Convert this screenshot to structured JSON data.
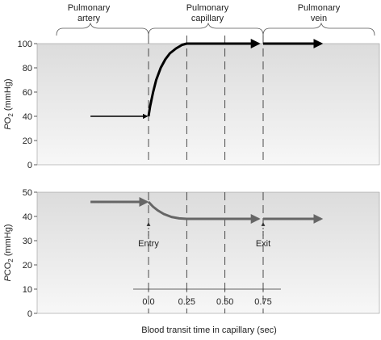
{
  "regions": [
    {
      "lines": [
        "Pulmonary",
        "artery"
      ]
    },
    {
      "lines": [
        "Pulmonary",
        "capillary"
      ]
    },
    {
      "lines": [
        "Pulmonary",
        "vein"
      ]
    }
  ],
  "chart_data": [
    {
      "type": "line",
      "ylabel": {
        "base": "P",
        "main": "O",
        "sub": "2",
        "unit": " (mmHg)"
      },
      "ylim": [
        0,
        100
      ],
      "yticks": [
        0,
        20,
        40,
        60,
        80,
        100
      ],
      "series_color": "#000000",
      "segments": [
        {
          "name": "",
          "x": [
            -0.38,
            -0.01
          ],
          "y": [
            40,
            40
          ],
          "arrow": true
        },
        {
          "name": "",
          "x": [
            0.0,
            0.01,
            0.03,
            0.05,
            0.08,
            0.11,
            0.14,
            0.18,
            0.22,
            0.25,
            0.35,
            0.5,
            0.6,
            0.72
          ],
          "y": [
            40,
            48,
            60,
            70,
            80,
            87,
            92,
            96,
            99,
            100,
            100,
            100,
            100,
            100
          ],
          "arrow": true
        },
        {
          "name": "",
          "x": [
            0.75,
            1.13
          ],
          "y": [
            100,
            100
          ],
          "arrow": true
        }
      ]
    },
    {
      "type": "line",
      "ylabel": {
        "base": "P",
        "main": "CO",
        "sub": "2",
        "unit": " (mmHg)"
      },
      "ylim": [
        0,
        50
      ],
      "yticks": [
        0,
        10,
        20,
        30,
        40,
        50
      ],
      "series_color": "#666666",
      "segments": [
        {
          "name": "",
          "x": [
            -0.38,
            -0.01
          ],
          "y": [
            46,
            46
          ],
          "arrow": true
        },
        {
          "name": "",
          "x": [
            0.0,
            0.03,
            0.06,
            0.1,
            0.15,
            0.2,
            0.25,
            0.35,
            0.5,
            0.6,
            0.72
          ],
          "y": [
            46,
            44,
            42.5,
            41,
            39.8,
            39.2,
            39,
            39,
            39,
            39,
            39
          ],
          "arrow": true
        },
        {
          "name": "",
          "x": [
            0.75,
            1.13
          ],
          "y": [
            39,
            39
          ],
          "arrow": true
        }
      ],
      "annotations": [
        {
          "text": "Entry",
          "x": 0.0
        },
        {
          "text": "Exit",
          "x": 0.75
        }
      ]
    }
  ],
  "time_axis": {
    "ticks": [
      "0.0",
      "0.25",
      "0.50",
      "0.75"
    ],
    "values": [
      0,
      0.25,
      0.5,
      0.75
    ],
    "label": "Blood transit time in capillary (sec)"
  }
}
